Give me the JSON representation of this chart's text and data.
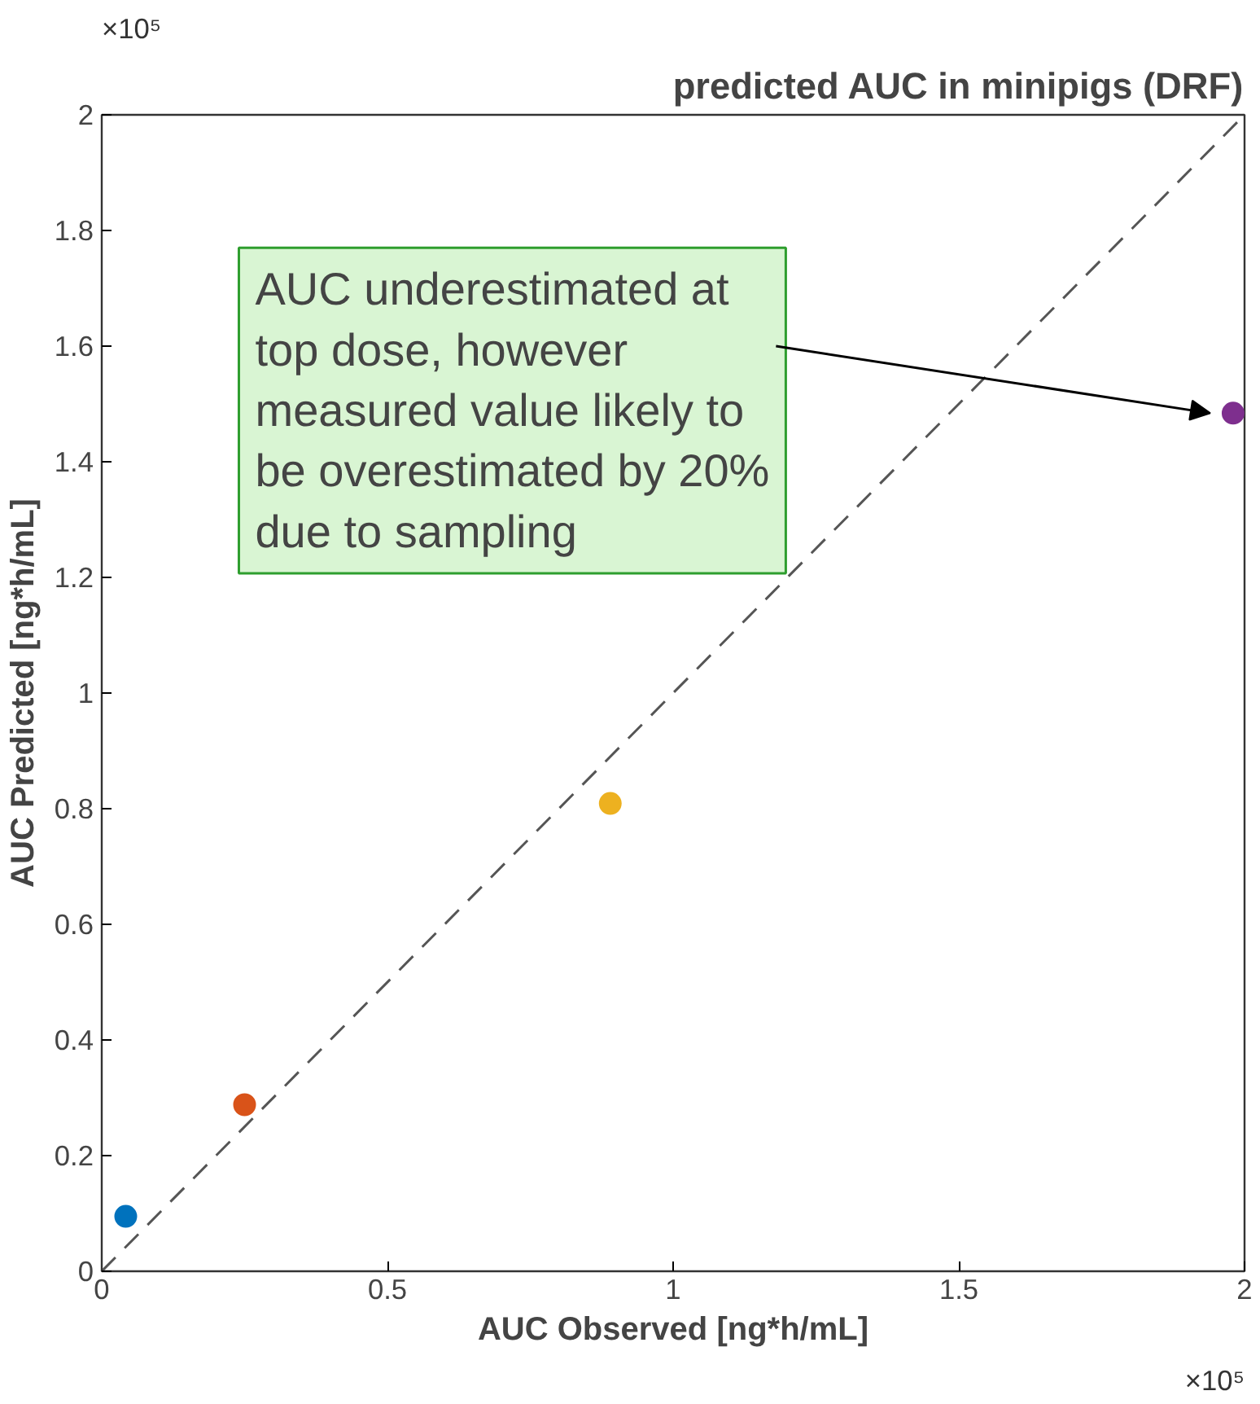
{
  "chart_data": {
    "type": "scatter",
    "title": "predicted AUC in minipigs (DRF)",
    "xlabel": "AUC Observed [ng*h/mL]",
    "ylabel": "AUC Predicted [ng*h/mL]",
    "x": [
      0.042,
      0.25,
      0.89,
      1.98
    ],
    "series": [
      {
        "marker": "circle",
        "colors": [
          "#0072bd",
          "#d95319",
          "#edb120",
          "#7e2f8e"
        ],
        "values": [
          0.095,
          0.288,
          0.809,
          1.484
        ]
      },
      {
        "type": "line",
        "color": "#555555",
        "line_style": "dashed",
        "x": [
          0,
          2
        ],
        "values": [
          0,
          2
        ]
      }
    ],
    "xlim": [
      0,
      2
    ],
    "ylim": [
      0,
      2
    ],
    "xticks": [
      0,
      0.5,
      1,
      1.5,
      2
    ],
    "yticks": [
      0,
      0.2,
      0.4,
      0.6,
      0.8,
      1,
      1.2,
      1.4,
      1.6,
      1.8,
      2
    ],
    "grid": false,
    "annotations": [
      "AUC underestimated at\ntop dose, however\nmeasured value likely to\nbe overestimated by 20%\ndue to sampling",
      "×10⁵",
      "×10⁵"
    ]
  }
}
